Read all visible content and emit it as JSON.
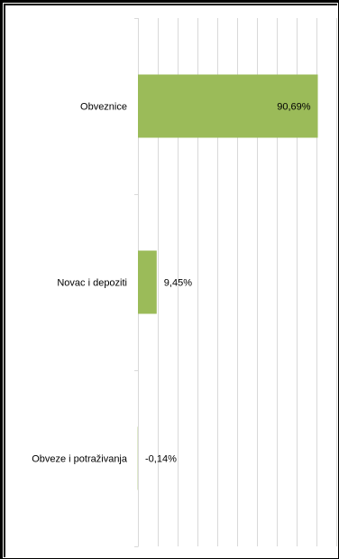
{
  "chart_data": {
    "type": "bar",
    "orientation": "horizontal",
    "categories": [
      "Obveznice",
      "Novac i depoziti",
      "Obveze i potraživanja"
    ],
    "values": [
      90.69,
      9.45,
      -0.14
    ],
    "value_labels": [
      "90,69%",
      "9,45%",
      "-0,14%"
    ],
    "title": "",
    "xlabel": "",
    "ylabel": "",
    "xlim": [
      0,
      100
    ],
    "grid": true,
    "legend": "none",
    "bar_color": "#9bbb59",
    "gridline_color": "#d9d9d9"
  }
}
